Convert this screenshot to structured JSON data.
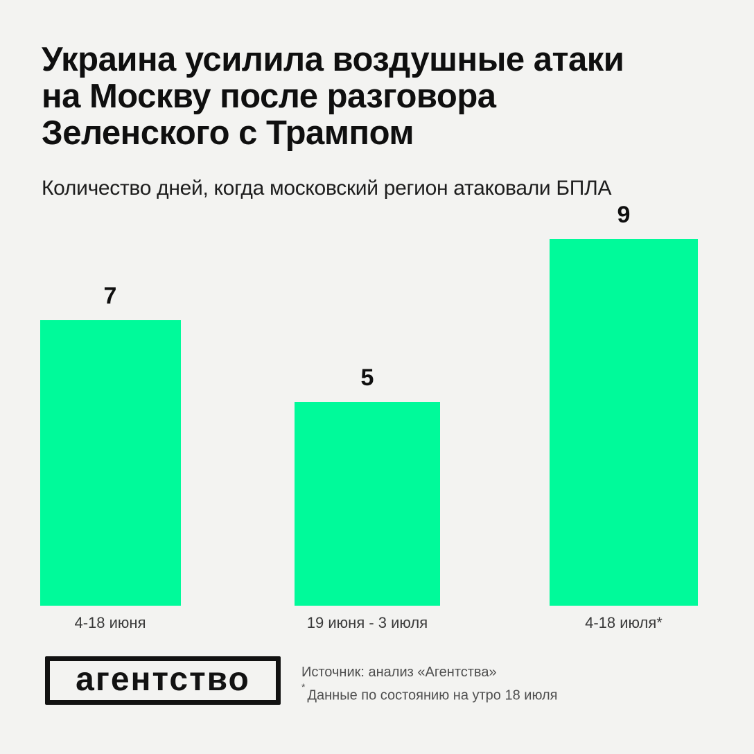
{
  "header": {
    "title_lines": [
      "Украина усилила воздушные атаки",
      "на Москву после разговора",
      "Зеленского с Трампом"
    ],
    "subtitle": "Количество дней, когда московский регион атаковали БПЛА"
  },
  "chart_data": {
    "type": "bar",
    "title": "Количество дней, когда московский регион атаковали БПЛА",
    "categories": [
      "4-18 июня",
      "19 июня - 3 июля",
      "4-18 июля*"
    ],
    "values": [
      7,
      5,
      9
    ],
    "value_labels": [
      "7",
      "5",
      "9"
    ],
    "xlabel": "",
    "ylabel": "",
    "ylim": [
      0,
      9
    ],
    "grid": false,
    "legend": "none",
    "bar_color": "#00FA9A"
  },
  "footer": {
    "logo_text": "агентство",
    "source_line": "Источник: анализ «Агентства»",
    "footnote_marker": "*",
    "footnote_text": "Данные по состоянию на утро 18 июля"
  },
  "colors": {
    "background": "#F3F3F1",
    "bar": "#00FA9A",
    "title_text": "#0F0F0F",
    "muted_text": "#4E4E4E"
  }
}
